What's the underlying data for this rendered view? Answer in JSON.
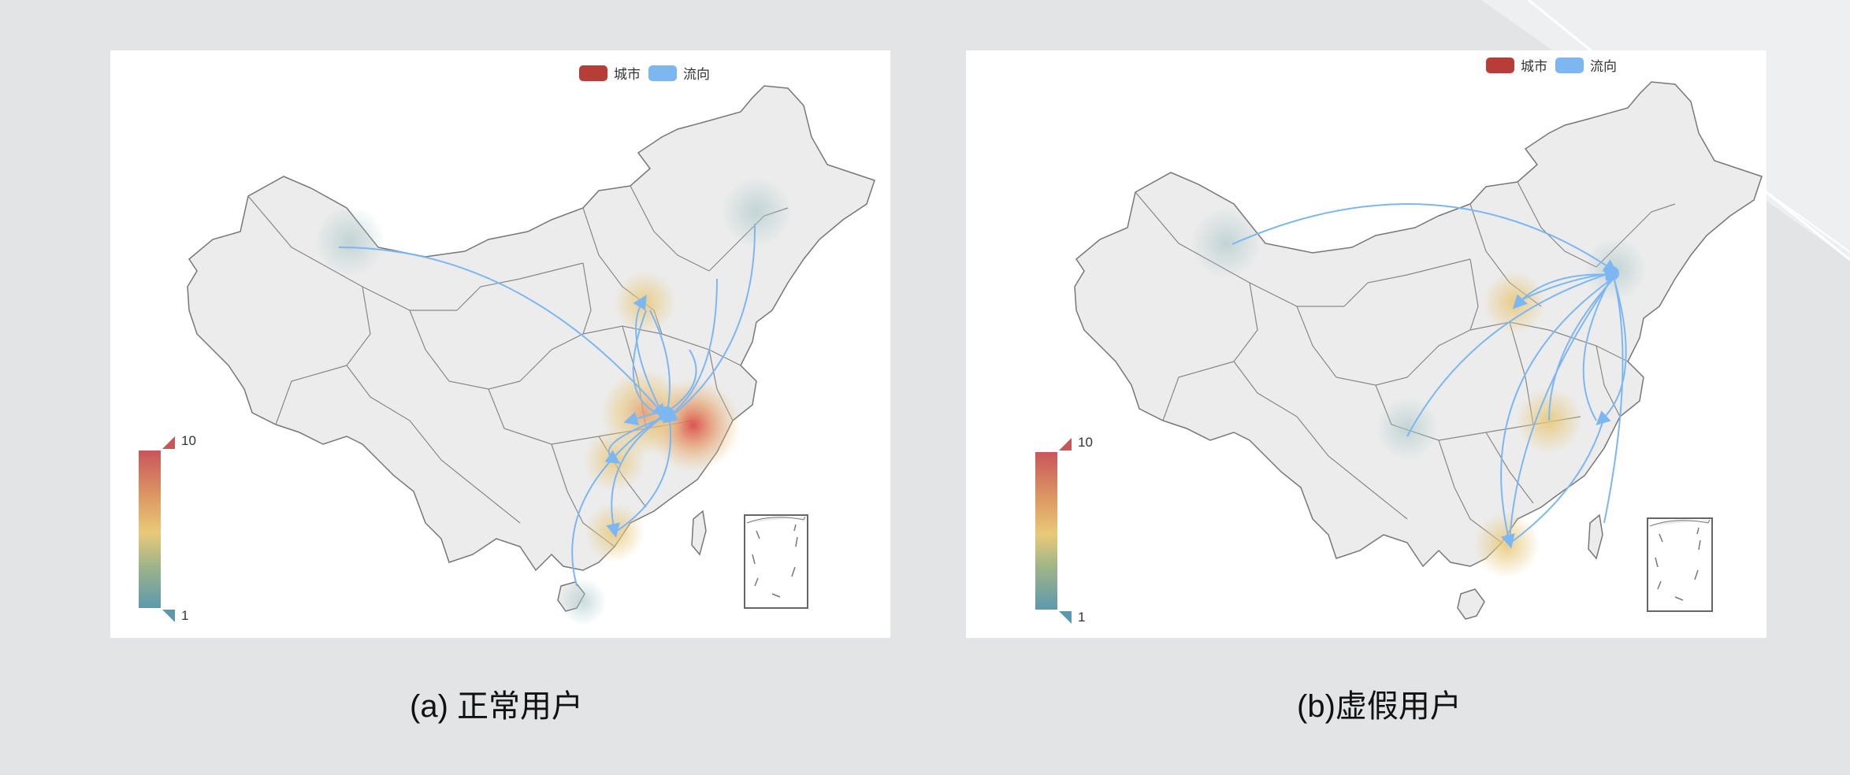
{
  "panels": [
    {
      "id": "a",
      "legend": [
        {
          "label": "城市",
          "color": "#b83c38"
        },
        {
          "label": "流向",
          "color": "#7db7f2"
        }
      ],
      "visual_map": {
        "max": "10",
        "min": "1"
      },
      "caption": "(a) 正常用户"
    },
    {
      "id": "b",
      "legend": [
        {
          "label": "城市",
          "color": "#b83c38"
        },
        {
          "label": "流向",
          "color": "#7db7f2"
        }
      ],
      "visual_map": {
        "max": "10",
        "min": "1"
      },
      "caption": "(b)虚假用户"
    }
  ],
  "colors": {
    "background": "#e3e4e6",
    "map_fill": "#ececec",
    "map_stroke": "#777777",
    "flow_line": "#7db7f2",
    "heat_high": "#d2524e",
    "heat_mid": "#e8c87a",
    "heat_low": "#a9c4c8"
  }
}
